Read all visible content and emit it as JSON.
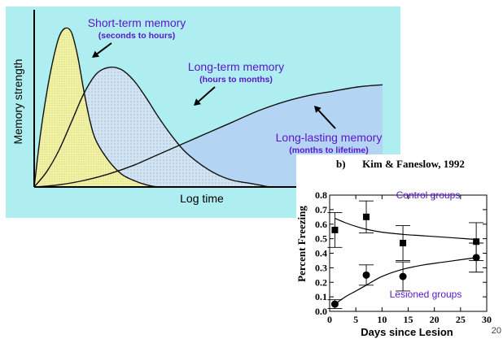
{
  "colors": {
    "panel_background": "#aeeef0",
    "short_term_fill": "#f3f3a6",
    "long_term_fill": "#d2e4f2",
    "long_lasting_fill": "#b4d4f4",
    "annotation_text": "#5a14cc",
    "curve": "#111111"
  },
  "chart_data": [
    {
      "type": "area",
      "xlabel": "Log time",
      "ylabel": "Memory strength",
      "series": [
        {
          "name": "Short-term memory",
          "label_lines": [
            "Short-term memory",
            "(seconds to hours)"
          ],
          "x": [
            0,
            0.5,
            1,
            1.5,
            2,
            2.5,
            3,
            3.5,
            4,
            4.5,
            5,
            6,
            7,
            8,
            9,
            10,
            11
          ],
          "values": [
            0,
            0.24,
            0.43,
            0.58,
            0.69,
            0.73,
            0.71,
            0.6,
            0.44,
            0.3,
            0.21,
            0.12,
            0.06,
            0.03,
            0.01,
            0,
            0
          ]
        },
        {
          "name": "Long-term memory",
          "label_lines": [
            "Long-term memory",
            "(hours to months)"
          ],
          "x": [
            0,
            1,
            2,
            3,
            4,
            5,
            6,
            7,
            8,
            9,
            10,
            11,
            12,
            13,
            14,
            15,
            16,
            17,
            18,
            19,
            20
          ],
          "values": [
            0,
            0.07,
            0.17,
            0.3,
            0.43,
            0.52,
            0.55,
            0.54,
            0.49,
            0.41,
            0.32,
            0.24,
            0.17,
            0.12,
            0.08,
            0.05,
            0.03,
            0.02,
            0.01,
            0,
            0
          ]
        },
        {
          "name": "Long-lasting memory",
          "label_lines": [
            "Long-lasting memory",
            "(months to lifetime)"
          ],
          "x": [
            0,
            2,
            4,
            6,
            8,
            10,
            12,
            14,
            16,
            18,
            20,
            22,
            24,
            26,
            28
          ],
          "values": [
            0,
            0.01,
            0.03,
            0.06,
            0.1,
            0.15,
            0.2,
            0.25,
            0.3,
            0.35,
            0.39,
            0.42,
            0.44,
            0.46,
            0.47
          ]
        }
      ]
    },
    {
      "type": "scatter",
      "panel_label": "b)",
      "title": "Kim & Faneslow, 1992",
      "xlabel": "Days since Lesion",
      "ylabel": "Percent Freezing",
      "xlim": [
        0,
        30
      ],
      "ylim": [
        0,
        0.8
      ],
      "xticks": [
        "0",
        "5",
        "10",
        "15",
        "20",
        "25",
        "30"
      ],
      "yticks": [
        "0.0",
        "0.1",
        "0.2",
        "0.3",
        "0.4",
        "0.5",
        "0.6",
        "0.7",
        "0.8"
      ],
      "series": [
        {
          "name": "Control groups",
          "marker": "square",
          "x": [
            1,
            7,
            14,
            28
          ],
          "values": [
            0.56,
            0.65,
            0.47,
            0.48
          ],
          "error": [
            0.12,
            0.11,
            0.12,
            0.13
          ],
          "fit_x": [
            1,
            3,
            5,
            7,
            10,
            14,
            18,
            22,
            26,
            28
          ],
          "fit_values": [
            0.64,
            0.61,
            0.585,
            0.565,
            0.545,
            0.53,
            0.52,
            0.51,
            0.5,
            0.495
          ]
        },
        {
          "name": "Lesioned groups",
          "marker": "circle",
          "x": [
            1,
            7,
            14,
            28
          ],
          "values": [
            0.05,
            0.25,
            0.24,
            0.37
          ],
          "error": [
            0.03,
            0.07,
            0.1,
            0.1
          ],
          "fit_x": [
            1,
            3,
            5,
            7,
            10,
            14,
            18,
            22,
            26,
            28
          ],
          "fit_values": [
            0.05,
            0.1,
            0.14,
            0.18,
            0.24,
            0.29,
            0.32,
            0.34,
            0.36,
            0.37
          ]
        }
      ]
    }
  ],
  "slide_number": "20"
}
